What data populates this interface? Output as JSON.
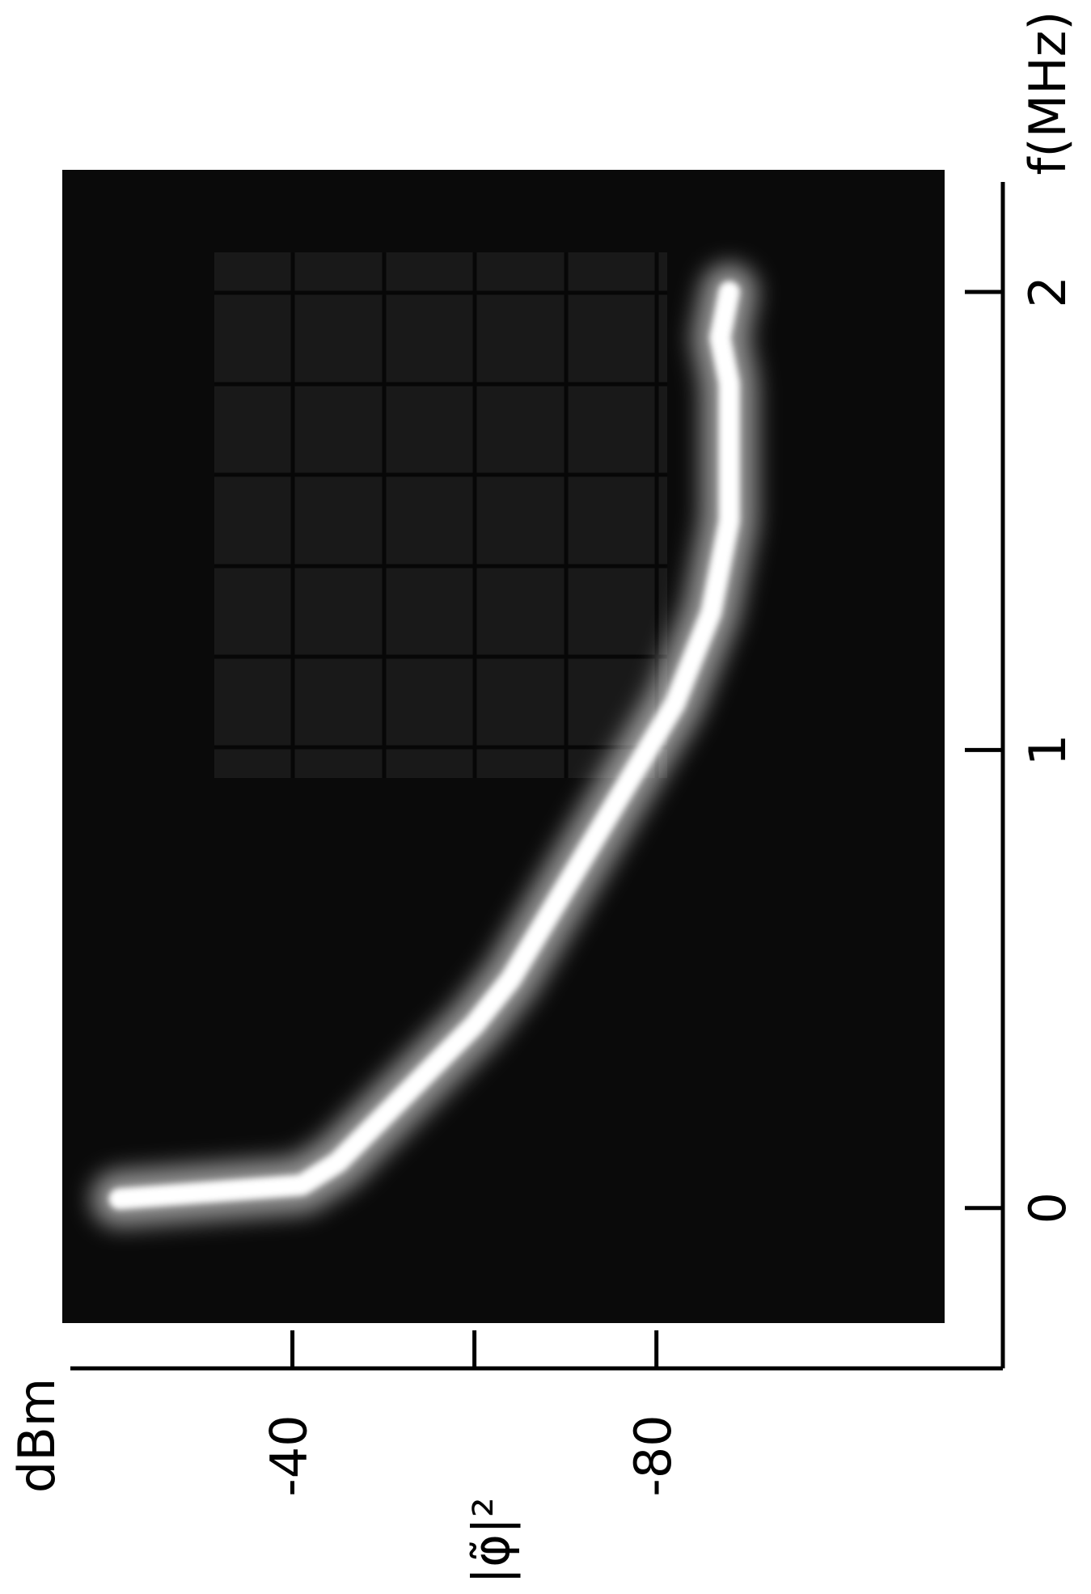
{
  "chart_data": {
    "type": "line",
    "xlabel": "f(MHz)",
    "ylabel": "|φ̃|²",
    "yunit": "dBm",
    "xlim": [
      -0.35,
      2.24
    ],
    "xticks": [
      0,
      1,
      2
    ],
    "ylim": [
      -117.8,
      -15.6
    ],
    "yticks": [
      -40,
      {
        "value": -60,
        "label": null
      },
      -80
    ],
    "series": [
      {
        "color": "#ffffff",
        "x": [
          0.02,
          0.05,
          0.1,
          0.2,
          0.3,
          0.4,
          0.5,
          0.6,
          0.7,
          0.8,
          0.9,
          1.0,
          1.1,
          1.2,
          1.3,
          1.4,
          1.5,
          1.6,
          1.7,
          1.8,
          1.9,
          2.0
        ],
        "values": [
          -21,
          -41,
          -45,
          -50,
          -55,
          -60,
          -64,
          -67,
          -70,
          -73,
          -76,
          -79,
          -82,
          -84,
          -86,
          -87,
          -88,
          -88,
          -88,
          -88,
          -87,
          -88
        ]
      }
    ]
  }
}
